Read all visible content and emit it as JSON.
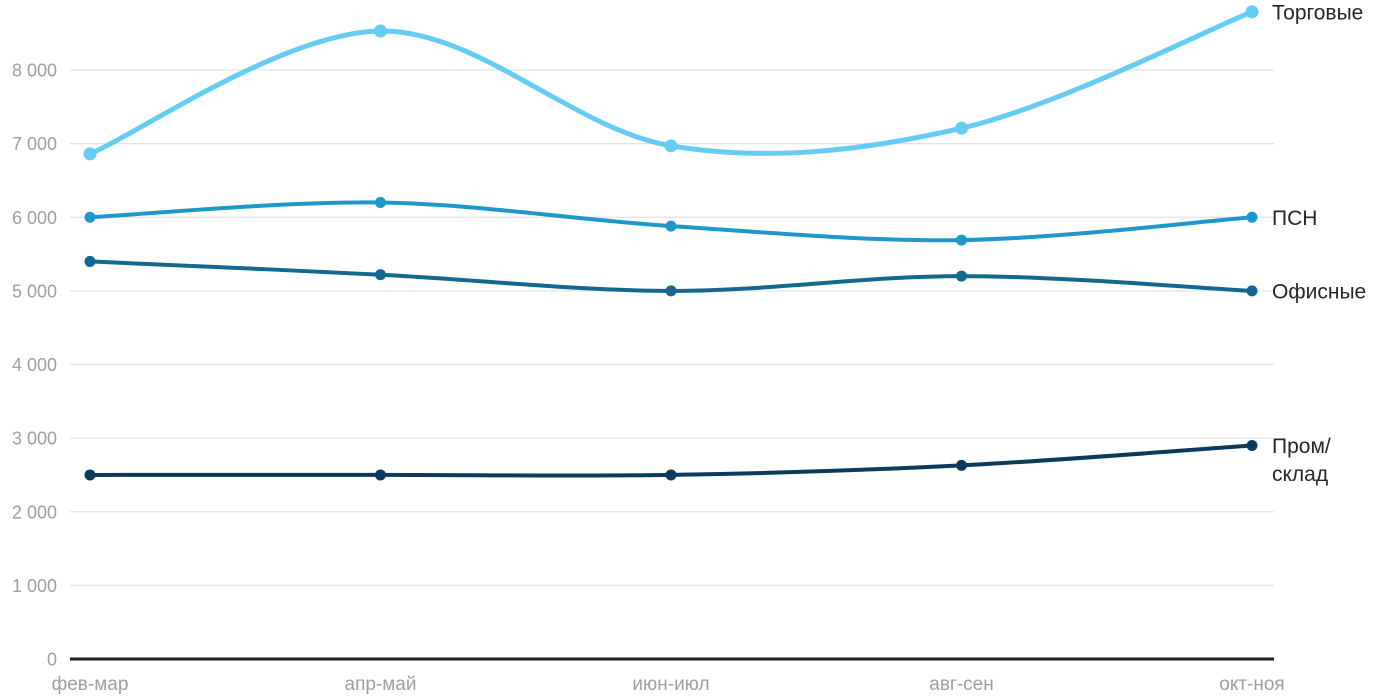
{
  "chart_data": {
    "type": "line",
    "title": "",
    "xlabel": "",
    "ylabel": "",
    "categories": [
      "фев-мар",
      "апр-май",
      "июн-июл",
      "авг-сен",
      "окт-ноя"
    ],
    "series": [
      {
        "name": "Торговые",
        "label_lines": [
          "Торговые"
        ],
        "color": "#64CCF5",
        "line_width": 5,
        "marker_radius": 6.5,
        "values": [
          6860,
          8530,
          6970,
          7210,
          8790
        ]
      },
      {
        "name": "ПСН",
        "label_lines": [
          "ПСН"
        ],
        "color": "#1E97C9",
        "line_width": 4,
        "marker_radius": 5.5,
        "values": [
          6000,
          6200,
          5880,
          5690,
          6000
        ]
      },
      {
        "name": "Офисные",
        "label_lines": [
          "Офисные"
        ],
        "color": "#14678F",
        "line_width": 4,
        "marker_radius": 5.5,
        "values": [
          5400,
          5220,
          5000,
          5200,
          5000
        ]
      },
      {
        "name": "Пром/склад",
        "label_lines": [
          "Пром/",
          "склад"
        ],
        "color": "#0C3A5C",
        "line_width": 4,
        "marker_radius": 5.5,
        "values": [
          2500,
          2500,
          2500,
          2630,
          2900
        ]
      }
    ],
    "y_ticks": [
      0,
      1000,
      2000,
      3000,
      4000,
      5000,
      6000,
      7000,
      8000
    ],
    "y_tick_labels": [
      "0",
      "1 000",
      "2 000",
      "3 000",
      "4 000",
      "5 000",
      "6 000",
      "7 000",
      "8 000"
    ],
    "ylim": [
      0,
      8000
    ],
    "grid": "horizontal",
    "legend_position": "right-of-line-ends"
  },
  "style": {
    "background_color": "#ffffff",
    "grid_color": "#e3e3e3",
    "axis_color": "#1f1f1f",
    "tick_label_color": "#9e9e9e",
    "series_label_color": "#262626"
  }
}
